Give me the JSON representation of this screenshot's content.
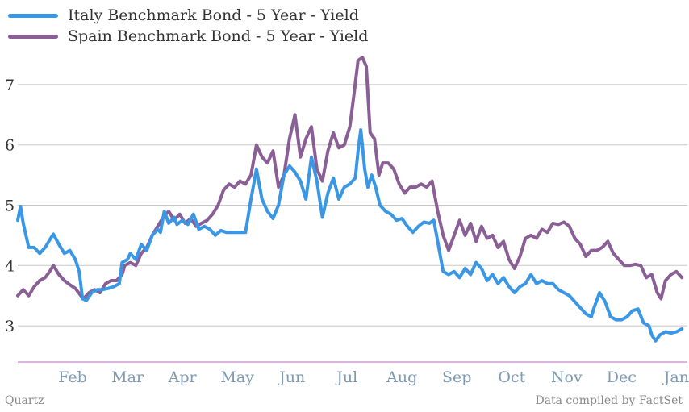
{
  "legend": [
    {
      "label": "Italy Benchmark Bond - 5 Year - Yield",
      "color": "#3a97e6"
    },
    {
      "label": "Spain Benchmark Bond - 5 Year - Yield",
      "color": "#8a5f96"
    }
  ],
  "footer": {
    "source_left": "Quartz",
    "source_right": "Data compiled by FactSet"
  },
  "colors": {
    "grid": "#c8c8c8",
    "baseline": "#d49ad8",
    "ytick": "#333333",
    "xtick": "#7f9bb3"
  },
  "chart_data": {
    "type": "line",
    "ylim": [
      2.4,
      7.6
    ],
    "yticks": [
      3,
      4,
      5,
      6,
      7
    ],
    "xlim": [
      0,
      12.2
    ],
    "xtick_labels": [
      "Feb",
      "Mar",
      "Apr",
      "May",
      "Jun",
      "Jul",
      "Aug",
      "Sep",
      "Oct",
      "Nov",
      "Dec",
      "Jan"
    ],
    "xtick_positions": [
      1,
      2,
      3,
      4,
      5,
      6,
      7,
      8,
      9,
      10,
      11,
      12
    ],
    "series": [
      {
        "name": "Italy Benchmark Bond - 5 Year - Yield",
        "color": "#3a97e6",
        "points": [
          [
            0.0,
            4.75
          ],
          [
            0.05,
            4.98
          ],
          [
            0.1,
            4.7
          ],
          [
            0.2,
            4.3
          ],
          [
            0.3,
            4.3
          ],
          [
            0.4,
            4.2
          ],
          [
            0.5,
            4.3
          ],
          [
            0.6,
            4.45
          ],
          [
            0.65,
            4.52
          ],
          [
            0.75,
            4.35
          ],
          [
            0.85,
            4.2
          ],
          [
            0.95,
            4.25
          ],
          [
            1.05,
            4.1
          ],
          [
            1.12,
            3.9
          ],
          [
            1.18,
            3.45
          ],
          [
            1.25,
            3.42
          ],
          [
            1.35,
            3.55
          ],
          [
            1.45,
            3.6
          ],
          [
            1.55,
            3.6
          ],
          [
            1.65,
            3.62
          ],
          [
            1.75,
            3.65
          ],
          [
            1.85,
            3.7
          ],
          [
            1.9,
            4.05
          ],
          [
            2.0,
            4.1
          ],
          [
            2.05,
            4.2
          ],
          [
            2.15,
            4.1
          ],
          [
            2.25,
            4.35
          ],
          [
            2.35,
            4.25
          ],
          [
            2.45,
            4.5
          ],
          [
            2.55,
            4.6
          ],
          [
            2.6,
            4.55
          ],
          [
            2.67,
            4.9
          ],
          [
            2.75,
            4.7
          ],
          [
            2.85,
            4.8
          ],
          [
            2.9,
            4.68
          ],
          [
            3.0,
            4.75
          ],
          [
            3.1,
            4.68
          ],
          [
            3.2,
            4.85
          ],
          [
            3.3,
            4.6
          ],
          [
            3.4,
            4.65
          ],
          [
            3.5,
            4.6
          ],
          [
            3.6,
            4.5
          ],
          [
            3.7,
            4.58
          ],
          [
            3.8,
            4.55
          ],
          [
            4.0,
            4.55
          ],
          [
            4.15,
            4.55
          ],
          [
            4.25,
            5.1
          ],
          [
            4.35,
            5.6
          ],
          [
            4.45,
            5.1
          ],
          [
            4.55,
            4.9
          ],
          [
            4.65,
            4.78
          ],
          [
            4.75,
            5.0
          ],
          [
            4.85,
            5.5
          ],
          [
            4.95,
            5.65
          ],
          [
            5.05,
            5.55
          ],
          [
            5.15,
            5.4
          ],
          [
            5.25,
            5.1
          ],
          [
            5.35,
            5.8
          ],
          [
            5.45,
            5.4
          ],
          [
            5.55,
            4.8
          ],
          [
            5.65,
            5.2
          ],
          [
            5.75,
            5.45
          ],
          [
            5.85,
            5.1
          ],
          [
            5.95,
            5.3
          ],
          [
            6.05,
            5.35
          ],
          [
            6.15,
            5.45
          ],
          [
            6.2,
            5.9
          ],
          [
            6.25,
            6.25
          ],
          [
            6.32,
            5.6
          ],
          [
            6.38,
            5.3
          ],
          [
            6.45,
            5.5
          ],
          [
            6.52,
            5.3
          ],
          [
            6.6,
            5.0
          ],
          [
            6.7,
            4.9
          ],
          [
            6.8,
            4.85
          ],
          [
            6.9,
            4.75
          ],
          [
            7.0,
            4.78
          ],
          [
            7.1,
            4.65
          ],
          [
            7.2,
            4.55
          ],
          [
            7.3,
            4.65
          ],
          [
            7.4,
            4.72
          ],
          [
            7.5,
            4.7
          ],
          [
            7.58,
            4.75
          ],
          [
            7.65,
            4.4
          ],
          [
            7.75,
            3.9
          ],
          [
            7.85,
            3.85
          ],
          [
            7.95,
            3.9
          ],
          [
            8.05,
            3.8
          ],
          [
            8.15,
            3.95
          ],
          [
            8.25,
            3.85
          ],
          [
            8.35,
            4.05
          ],
          [
            8.45,
            3.95
          ],
          [
            8.55,
            3.75
          ],
          [
            8.65,
            3.85
          ],
          [
            8.75,
            3.7
          ],
          [
            8.85,
            3.8
          ],
          [
            8.95,
            3.65
          ],
          [
            9.05,
            3.55
          ],
          [
            9.15,
            3.65
          ],
          [
            9.25,
            3.7
          ],
          [
            9.35,
            3.85
          ],
          [
            9.45,
            3.7
          ],
          [
            9.55,
            3.75
          ],
          [
            9.65,
            3.7
          ],
          [
            9.75,
            3.7
          ],
          [
            9.85,
            3.6
          ],
          [
            9.95,
            3.55
          ],
          [
            10.05,
            3.5
          ],
          [
            10.15,
            3.4
          ],
          [
            10.25,
            3.3
          ],
          [
            10.35,
            3.2
          ],
          [
            10.45,
            3.15
          ],
          [
            10.5,
            3.3
          ],
          [
            10.6,
            3.55
          ],
          [
            10.7,
            3.4
          ],
          [
            10.8,
            3.15
          ],
          [
            10.9,
            3.1
          ],
          [
            11.0,
            3.1
          ],
          [
            11.1,
            3.15
          ],
          [
            11.2,
            3.25
          ],
          [
            11.3,
            3.28
          ],
          [
            11.4,
            3.05
          ],
          [
            11.5,
            3.0
          ],
          [
            11.55,
            2.85
          ],
          [
            11.62,
            2.75
          ],
          [
            11.7,
            2.85
          ],
          [
            11.8,
            2.9
          ],
          [
            11.9,
            2.88
          ],
          [
            12.0,
            2.9
          ],
          [
            12.1,
            2.95
          ]
        ]
      },
      {
        "name": "Spain Benchmark Bond - 5 Year - Yield",
        "color": "#8a5f96",
        "points": [
          [
            0.0,
            3.5
          ],
          [
            0.1,
            3.6
          ],
          [
            0.2,
            3.5
          ],
          [
            0.3,
            3.65
          ],
          [
            0.4,
            3.75
          ],
          [
            0.5,
            3.8
          ],
          [
            0.58,
            3.9
          ],
          [
            0.65,
            4.0
          ],
          [
            0.75,
            3.85
          ],
          [
            0.85,
            3.75
          ],
          [
            0.95,
            3.68
          ],
          [
            1.05,
            3.62
          ],
          [
            1.15,
            3.5
          ],
          [
            1.2,
            3.45
          ],
          [
            1.3,
            3.55
          ],
          [
            1.4,
            3.6
          ],
          [
            1.5,
            3.55
          ],
          [
            1.6,
            3.7
          ],
          [
            1.7,
            3.75
          ],
          [
            1.8,
            3.75
          ],
          [
            1.9,
            3.85
          ],
          [
            1.95,
            4.0
          ],
          [
            2.05,
            4.05
          ],
          [
            2.15,
            4.0
          ],
          [
            2.25,
            4.2
          ],
          [
            2.35,
            4.3
          ],
          [
            2.45,
            4.5
          ],
          [
            2.55,
            4.65
          ],
          [
            2.65,
            4.8
          ],
          [
            2.75,
            4.9
          ],
          [
            2.85,
            4.75
          ],
          [
            2.95,
            4.85
          ],
          [
            3.05,
            4.7
          ],
          [
            3.15,
            4.78
          ],
          [
            3.25,
            4.65
          ],
          [
            3.35,
            4.7
          ],
          [
            3.45,
            4.75
          ],
          [
            3.55,
            4.85
          ],
          [
            3.65,
            5.0
          ],
          [
            3.75,
            5.25
          ],
          [
            3.85,
            5.35
          ],
          [
            3.95,
            5.3
          ],
          [
            4.05,
            5.4
          ],
          [
            4.15,
            5.35
          ],
          [
            4.25,
            5.5
          ],
          [
            4.35,
            6.0
          ],
          [
            4.45,
            5.8
          ],
          [
            4.55,
            5.7
          ],
          [
            4.65,
            5.9
          ],
          [
            4.75,
            5.3
          ],
          [
            4.85,
            5.5
          ],
          [
            4.95,
            6.1
          ],
          [
            5.05,
            6.5
          ],
          [
            5.15,
            5.8
          ],
          [
            5.25,
            6.1
          ],
          [
            5.35,
            6.3
          ],
          [
            5.45,
            5.6
          ],
          [
            5.55,
            5.4
          ],
          [
            5.65,
            5.9
          ],
          [
            5.75,
            6.2
          ],
          [
            5.85,
            5.95
          ],
          [
            5.95,
            6.0
          ],
          [
            6.05,
            6.3
          ],
          [
            6.12,
            6.8
          ],
          [
            6.2,
            7.4
          ],
          [
            6.28,
            7.45
          ],
          [
            6.35,
            7.3
          ],
          [
            6.42,
            6.2
          ],
          [
            6.5,
            6.1
          ],
          [
            6.58,
            5.5
          ],
          [
            6.65,
            5.7
          ],
          [
            6.75,
            5.7
          ],
          [
            6.85,
            5.6
          ],
          [
            6.95,
            5.35
          ],
          [
            7.05,
            5.2
          ],
          [
            7.15,
            5.3
          ],
          [
            7.25,
            5.3
          ],
          [
            7.35,
            5.35
          ],
          [
            7.45,
            5.3
          ],
          [
            7.55,
            5.4
          ],
          [
            7.65,
            4.9
          ],
          [
            7.75,
            4.5
          ],
          [
            7.85,
            4.25
          ],
          [
            7.95,
            4.5
          ],
          [
            8.05,
            4.75
          ],
          [
            8.15,
            4.5
          ],
          [
            8.25,
            4.7
          ],
          [
            8.35,
            4.4
          ],
          [
            8.45,
            4.65
          ],
          [
            8.55,
            4.45
          ],
          [
            8.65,
            4.5
          ],
          [
            8.75,
            4.3
          ],
          [
            8.85,
            4.4
          ],
          [
            8.95,
            4.1
          ],
          [
            9.05,
            3.95
          ],
          [
            9.15,
            4.15
          ],
          [
            9.25,
            4.45
          ],
          [
            9.35,
            4.5
          ],
          [
            9.45,
            4.45
          ],
          [
            9.55,
            4.6
          ],
          [
            9.65,
            4.55
          ],
          [
            9.75,
            4.7
          ],
          [
            9.85,
            4.68
          ],
          [
            9.95,
            4.72
          ],
          [
            10.05,
            4.65
          ],
          [
            10.15,
            4.45
          ],
          [
            10.25,
            4.35
          ],
          [
            10.35,
            4.15
          ],
          [
            10.45,
            4.25
          ],
          [
            10.55,
            4.25
          ],
          [
            10.65,
            4.3
          ],
          [
            10.75,
            4.4
          ],
          [
            10.85,
            4.2
          ],
          [
            10.95,
            4.1
          ],
          [
            11.05,
            4.0
          ],
          [
            11.15,
            4.0
          ],
          [
            11.25,
            4.02
          ],
          [
            11.35,
            4.0
          ],
          [
            11.45,
            3.8
          ],
          [
            11.55,
            3.85
          ],
          [
            11.65,
            3.55
          ],
          [
            11.72,
            3.45
          ],
          [
            11.8,
            3.75
          ],
          [
            11.9,
            3.85
          ],
          [
            12.0,
            3.9
          ],
          [
            12.1,
            3.8
          ]
        ]
      }
    ]
  }
}
